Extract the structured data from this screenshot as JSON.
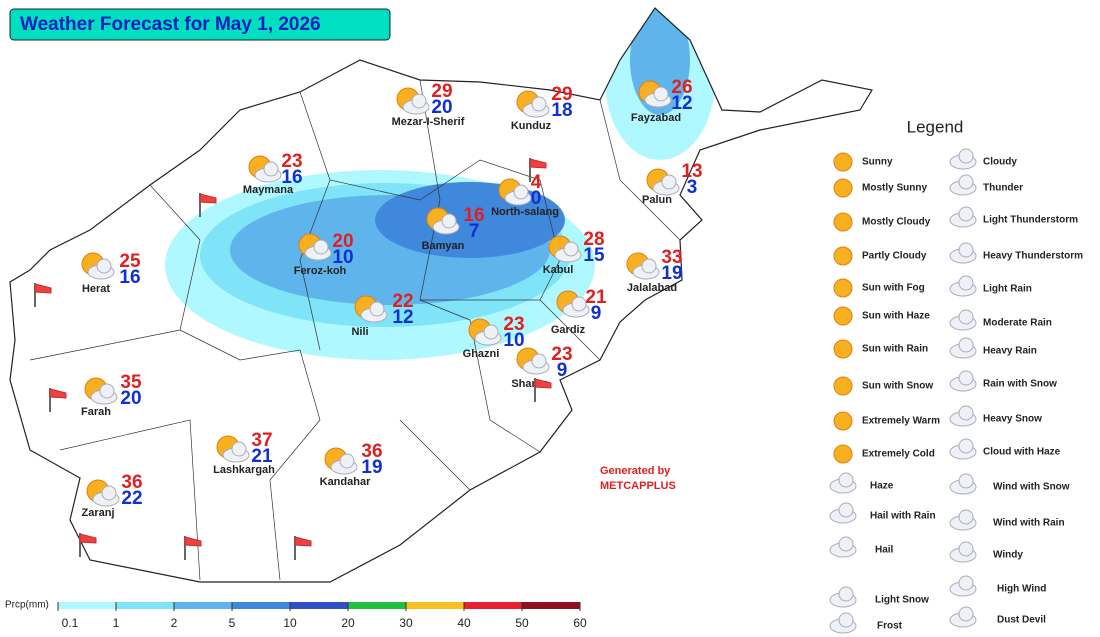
{
  "title": "Weather Forecast for May 1, 2026",
  "cities": [
    {
      "name": "Mezar-I-Sherif",
      "max": 29,
      "min": 20
    },
    {
      "name": "Kunduz",
      "max": 29,
      "min": 18
    },
    {
      "name": "Fayzabad",
      "max": 26,
      "min": 12
    },
    {
      "name": "Maymana",
      "max": 23,
      "min": 16
    },
    {
      "name": "North-salang",
      "max": 4,
      "min": 0
    },
    {
      "name": "Palun",
      "max": 13,
      "min": 3
    },
    {
      "name": "Herat",
      "max": 25,
      "min": 16
    },
    {
      "name": "Feroz-koh",
      "max": 20,
      "min": 10
    },
    {
      "name": "Bamyan",
      "max": 16,
      "min": 7
    },
    {
      "name": "Kabul",
      "max": 28,
      "min": 15
    },
    {
      "name": "Jalalabad",
      "max": 33,
      "min": 19
    },
    {
      "name": "Nili",
      "max": 22,
      "min": 12
    },
    {
      "name": "Ghazni",
      "max": 23,
      "min": 10
    },
    {
      "name": "Gardiz",
      "max": 21,
      "min": 9
    },
    {
      "name": "Sharan",
      "max": 23,
      "min": 9
    },
    {
      "name": "Farah",
      "max": 35,
      "min": 20
    },
    {
      "name": "Lashkargah",
      "max": 37,
      "min": 21
    },
    {
      "name": "Kandahar",
      "max": 36,
      "min": 19
    },
    {
      "name": "Zaranj",
      "max": 36,
      "min": 22
    }
  ],
  "legend": {
    "title": "Legend",
    "column1": [
      "Sunny",
      "Mostly Sunny",
      "Mostly Cloudy",
      "Partly Cloudy",
      "Sun with Fog",
      "Sun with Haze",
      "Sun with Rain",
      "Sun with Snow",
      "Extremely Warm",
      "Extremely Cold",
      "Haze",
      "Hail with Rain",
      "Hail",
      "Light Snow",
      "Frost"
    ],
    "column2": [
      "Cloudy",
      "Thunder",
      "Light Thunderstorm",
      "Heavy Thunderstorm",
      "Light Rain",
      "Moderate Rain",
      "Heavy Rain",
      "Rain with Snow",
      "Heavy Snow",
      "Cloud with Haze",
      "Wind with Snow",
      "Wind with Rain",
      "Windy",
      "High Wind",
      "Dust Devil"
    ]
  },
  "credit": [
    "Generated by",
    "METCAPPLUS"
  ],
  "precip_scale": {
    "label": "Prcp(mm)",
    "ticks": [
      0.1,
      1,
      2,
      5,
      10,
      20,
      30,
      40,
      50,
      60
    ],
    "colors": [
      "#b0f8ff",
      "#80e4f8",
      "#60b4ec",
      "#4088dc",
      "#3050c8",
      "#20c040",
      "#f8c020",
      "#e82030",
      "#901020"
    ]
  }
}
